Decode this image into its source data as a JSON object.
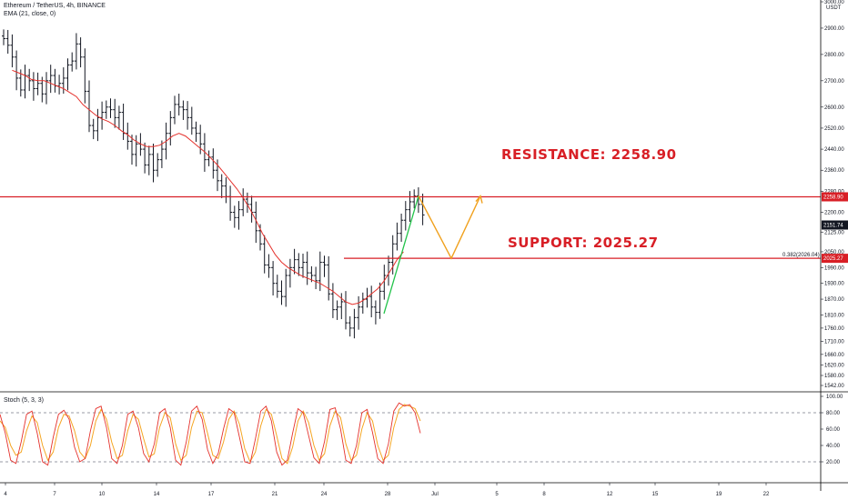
{
  "legend": {
    "symbol": "Ethereum / TetherUS, 4h, BINANCE",
    "ema": "EMA (21, close, 0)",
    "stoch": "Stoch (5, 3, 3)"
  },
  "annotations": {
    "resistance": "RESISTANCE: 2258.90",
    "support": "SUPPORT: 2025.27",
    "fib": "0.382(2026.04)"
  },
  "price_axis": {
    "currency": "USDT",
    "ticks": [
      "3000.00",
      "2900.00",
      "2800.00",
      "2700.00",
      "2600.00",
      "2520.00",
      "2440.00",
      "2360.00",
      "2280.00",
      "2200.00",
      "2125.00",
      "2050.00",
      "1990.00",
      "1930.00",
      "1870.00",
      "1810.00",
      "1760.00",
      "1710.00",
      "1660.00",
      "1620.00",
      "1580.00",
      "1542.00"
    ],
    "tags": [
      {
        "label": "2258.90",
        "value": 2258.9,
        "color": "#d81f26"
      },
      {
        "label": "2151.74",
        "value": 2151.74,
        "color": "#131722"
      },
      {
        "label": "2025.27",
        "value": 2025.27,
        "color": "#d81f26"
      }
    ]
  },
  "stoch_axis": {
    "ticks": [
      "100.00",
      "80.00",
      "60.00",
      "40.00",
      "20.00"
    ]
  },
  "time_axis": {
    "labels": [
      "4",
      "7",
      "10",
      "14",
      "17",
      "21",
      "24",
      "28",
      "Jul",
      "5",
      "8",
      "12",
      "15",
      "19",
      "22"
    ]
  },
  "chart_data": {
    "type": "ohlc",
    "title": "Ethereum / TetherUS, 4h, BINANCE",
    "price_levels": {
      "resistance": 2258.9,
      "support": 2025.27,
      "fib_0382": 2026.04,
      "last": 2151.74
    },
    "ohlc_close_series": [
      2860,
      2835,
      2790,
      2710,
      2665,
      2720,
      2700,
      2670,
      2690,
      2650,
      2700,
      2720,
      2680,
      2690,
      2710,
      2760,
      2775,
      2840,
      2790,
      2660,
      2530,
      2510,
      2560,
      2580,
      2600,
      2590,
      2560,
      2580,
      2500,
      2470,
      2420,
      2460,
      2440,
      2380,
      2420,
      2360,
      2400,
      2440,
      2500,
      2560,
      2610,
      2600,
      2590,
      2560,
      2520,
      2500,
      2460,
      2400,
      2410,
      2360,
      2320,
      2300,
      2260,
      2200,
      2180,
      2210,
      2250,
      2230,
      2200,
      2130,
      2080,
      2000,
      1990,
      1930,
      1900,
      1880,
      1960,
      1990,
      2020,
      1990,
      2010,
      1970,
      1960,
      1940,
      2010,
      2000,
      1890,
      1830,
      1840,
      1860,
      1780,
      1760,
      1800,
      1840,
      1870,
      1880,
      1840,
      1820,
      1900,
      1960,
      2010,
      2080,
      2120,
      2170,
      2210,
      2240,
      2262,
      2230,
      2190
    ],
    "ema_21_series": [
      2740,
      2730,
      2720,
      2705,
      2700,
      2700,
      2690,
      2680,
      2670,
      2655,
      2640,
      2610,
      2590,
      2570,
      2555,
      2545,
      2530,
      2510,
      2495,
      2475,
      2460,
      2450,
      2450,
      2455,
      2470,
      2490,
      2500,
      2490,
      2470,
      2450,
      2430,
      2405,
      2380,
      2350,
      2320,
      2290,
      2255,
      2215,
      2170,
      2120,
      2080,
      2040,
      2010,
      1990,
      1975,
      1960,
      1950,
      1940,
      1930,
      1915,
      1900,
      1880,
      1860,
      1850,
      1855,
      1870,
      1890,
      1910,
      1940,
      1980,
      2020,
      2050
    ],
    "ema_21_start_index": 10,
    "projection": [
      {
        "label": "start",
        "value": 2262
      },
      {
        "label": "pullback",
        "value": 2025
      },
      {
        "label": "target",
        "value": 2262
      }
    ],
    "stoch_k": [
      78,
      55,
      22,
      18,
      45,
      78,
      82,
      55,
      20,
      16,
      50,
      78,
      83,
      72,
      38,
      20,
      24,
      58,
      85,
      88,
      62,
      24,
      18,
      40,
      78,
      82,
      62,
      30,
      20,
      42,
      80,
      85,
      62,
      22,
      16,
      44,
      82,
      88,
      72,
      35,
      18,
      30,
      60,
      85,
      80,
      50,
      20,
      18,
      48,
      82,
      88,
      70,
      32,
      16,
      22,
      55,
      85,
      80,
      52,
      25,
      18,
      45,
      84,
      86,
      60,
      22,
      18,
      40,
      80,
      84,
      56,
      24,
      18,
      42,
      82,
      92,
      88,
      90,
      80,
      55
    ],
    "stoch_d": [
      70,
      62,
      40,
      28,
      32,
      58,
      76,
      68,
      40,
      22,
      32,
      62,
      78,
      76,
      58,
      32,
      24,
      40,
      70,
      84,
      72,
      44,
      24,
      28,
      58,
      78,
      72,
      48,
      26,
      30,
      62,
      80,
      74,
      42,
      22,
      28,
      62,
      82,
      80,
      55,
      28,
      24,
      44,
      72,
      82,
      66,
      36,
      20,
      32,
      64,
      84,
      78,
      52,
      24,
      18,
      38,
      70,
      82,
      68,
      40,
      22,
      30,
      64,
      82,
      74,
      42,
      22,
      28,
      60,
      80,
      70,
      40,
      22,
      28,
      62,
      84,
      90,
      88,
      85,
      70
    ],
    "stoch_levels": {
      "upper": 80,
      "lower": 20
    },
    "ylim": [
      1542,
      3000
    ],
    "stoch_ylim": [
      0,
      100
    ]
  }
}
